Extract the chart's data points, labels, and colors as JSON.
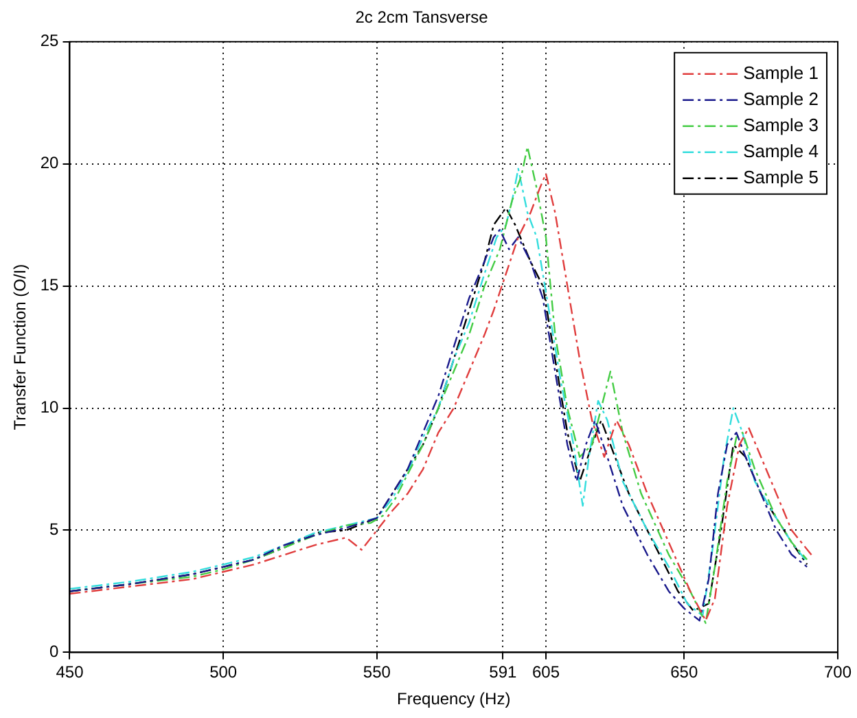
{
  "chart_data": {
    "type": "line",
    "title": "2c 2cm Tansverse",
    "xlabel": "Frequency (Hz)",
    "ylabel": "Transfer Function (O/I)",
    "xlim": [
      450,
      700
    ],
    "xticks": [
      450,
      500,
      550,
      591,
      605,
      650,
      700
    ],
    "ylim": [
      0,
      25
    ],
    "yticks": [
      0,
      5,
      10,
      15,
      20,
      25
    ],
    "grid": true,
    "legend": "top right",
    "line_style": "dashed",
    "marker": "none",
    "series": [
      {
        "name": "Sample 1",
        "color": "#e03c3c",
        "x": [
          450,
          470,
          490,
          500,
          510,
          520,
          530,
          540,
          545,
          550,
          555,
          560,
          565,
          570,
          575,
          580,
          585,
          588,
          592,
          596,
          600,
          603,
          605,
          608,
          612,
          616,
          620,
          624,
          628,
          632,
          638,
          645,
          652,
          657,
          660,
          664,
          668,
          671,
          675,
          680,
          685,
          692
        ],
        "values": [
          2.4,
          2.7,
          3.0,
          3.3,
          3.6,
          4.0,
          4.4,
          4.7,
          4.2,
          5.0,
          5.8,
          6.5,
          7.5,
          9.0,
          10.0,
          11.5,
          13.0,
          14.0,
          15.5,
          17.0,
          18.0,
          19.0,
          19.6,
          18.0,
          15.0,
          12.0,
          9.5,
          8.0,
          9.5,
          8.5,
          6.5,
          4.5,
          2.5,
          1.3,
          2.2,
          6.0,
          8.5,
          9.2,
          8.0,
          6.5,
          5.0,
          3.9
        ]
      },
      {
        "name": "Sample 2",
        "color": "#1a1a8c",
        "x": [
          450,
          470,
          490,
          500,
          510,
          520,
          530,
          540,
          550,
          555,
          560,
          565,
          570,
          575,
          580,
          585,
          588,
          590,
          593,
          596,
          600,
          604,
          608,
          612,
          615,
          618,
          621,
          625,
          630,
          638,
          645,
          650,
          655,
          658,
          661,
          664,
          667,
          670,
          675,
          680,
          685,
          690
        ],
        "values": [
          2.5,
          2.8,
          3.2,
          3.5,
          3.8,
          4.4,
          4.8,
          5.1,
          5.5,
          6.5,
          7.5,
          9.0,
          10.5,
          12.5,
          14.5,
          16.0,
          17.0,
          17.3,
          16.5,
          17.0,
          16.0,
          14.5,
          11.5,
          8.5,
          7.0,
          8.5,
          9.5,
          8.0,
          6.0,
          4.0,
          2.5,
          1.8,
          1.3,
          3.0,
          6.5,
          8.5,
          9.0,
          8.0,
          6.5,
          5.0,
          4.0,
          3.5
        ]
      },
      {
        "name": "Sample 3",
        "color": "#44cc44",
        "x": [
          450,
          470,
          490,
          500,
          510,
          520,
          530,
          540,
          548,
          552,
          556,
          560,
          565,
          570,
          575,
          580,
          585,
          590,
          594,
          597,
          599,
          602,
          605,
          608,
          612,
          616,
          620,
          624,
          626,
          630,
          636,
          645,
          652,
          657,
          660,
          664,
          667,
          669,
          673,
          680,
          685,
          690
        ],
        "values": [
          2.5,
          2.8,
          3.1,
          3.4,
          3.8,
          4.3,
          4.8,
          5.2,
          5.3,
          5.6,
          6.3,
          7.3,
          8.5,
          10.0,
          11.5,
          13.0,
          15.0,
          16.5,
          18.5,
          19.5,
          20.7,
          19.0,
          17.0,
          13.0,
          10.0,
          8.0,
          8.5,
          10.5,
          11.5,
          9.0,
          6.5,
          4.0,
          2.5,
          1.2,
          3.5,
          7.0,
          8.8,
          9.0,
          7.5,
          5.5,
          4.5,
          3.8
        ]
      },
      {
        "name": "Sample 4",
        "color": "#33dddd",
        "x": [
          450,
          470,
          490,
          500,
          510,
          520,
          530,
          540,
          550,
          555,
          560,
          565,
          570,
          575,
          580,
          585,
          589,
          592,
          594,
          596,
          599,
          602,
          606,
          610,
          614,
          617,
          619,
          622,
          625,
          630,
          638,
          645,
          651,
          656,
          659,
          663,
          666,
          669,
          673,
          680,
          685,
          690
        ],
        "values": [
          2.6,
          2.9,
          3.3,
          3.6,
          3.9,
          4.4,
          4.9,
          5.2,
          5.5,
          6.3,
          7.4,
          8.8,
          10.0,
          12.0,
          13.5,
          15.5,
          17.0,
          17.5,
          18.5,
          19.8,
          18.0,
          17.0,
          14.0,
          11.0,
          8.5,
          6.0,
          8.0,
          10.3,
          9.5,
          7.0,
          5.0,
          3.5,
          2.0,
          1.5,
          4.0,
          8.0,
          10.0,
          9.0,
          7.0,
          5.5,
          4.5,
          3.7
        ]
      },
      {
        "name": "Sample 5",
        "color": "#000000",
        "x": [
          450,
          470,
          490,
          500,
          510,
          520,
          530,
          540,
          550,
          555,
          560,
          565,
          570,
          575,
          580,
          585,
          588,
          592,
          595,
          600,
          604,
          608,
          612,
          616,
          620,
          623,
          626,
          632,
          640,
          648,
          653,
          658,
          662,
          666,
          670,
          675,
          680,
          685,
          690
        ],
        "values": [
          2.5,
          2.8,
          3.2,
          3.5,
          3.8,
          4.3,
          4.9,
          5.0,
          5.5,
          6.5,
          7.5,
          8.5,
          10.0,
          12.0,
          14.0,
          16.0,
          17.5,
          18.2,
          17.5,
          16.0,
          15.0,
          12.0,
          9.0,
          7.0,
          8.5,
          9.5,
          8.5,
          6.5,
          4.5,
          2.5,
          1.7,
          2.0,
          5.0,
          8.5,
          8.0,
          6.5,
          5.5,
          4.5,
          3.6
        ]
      }
    ]
  }
}
